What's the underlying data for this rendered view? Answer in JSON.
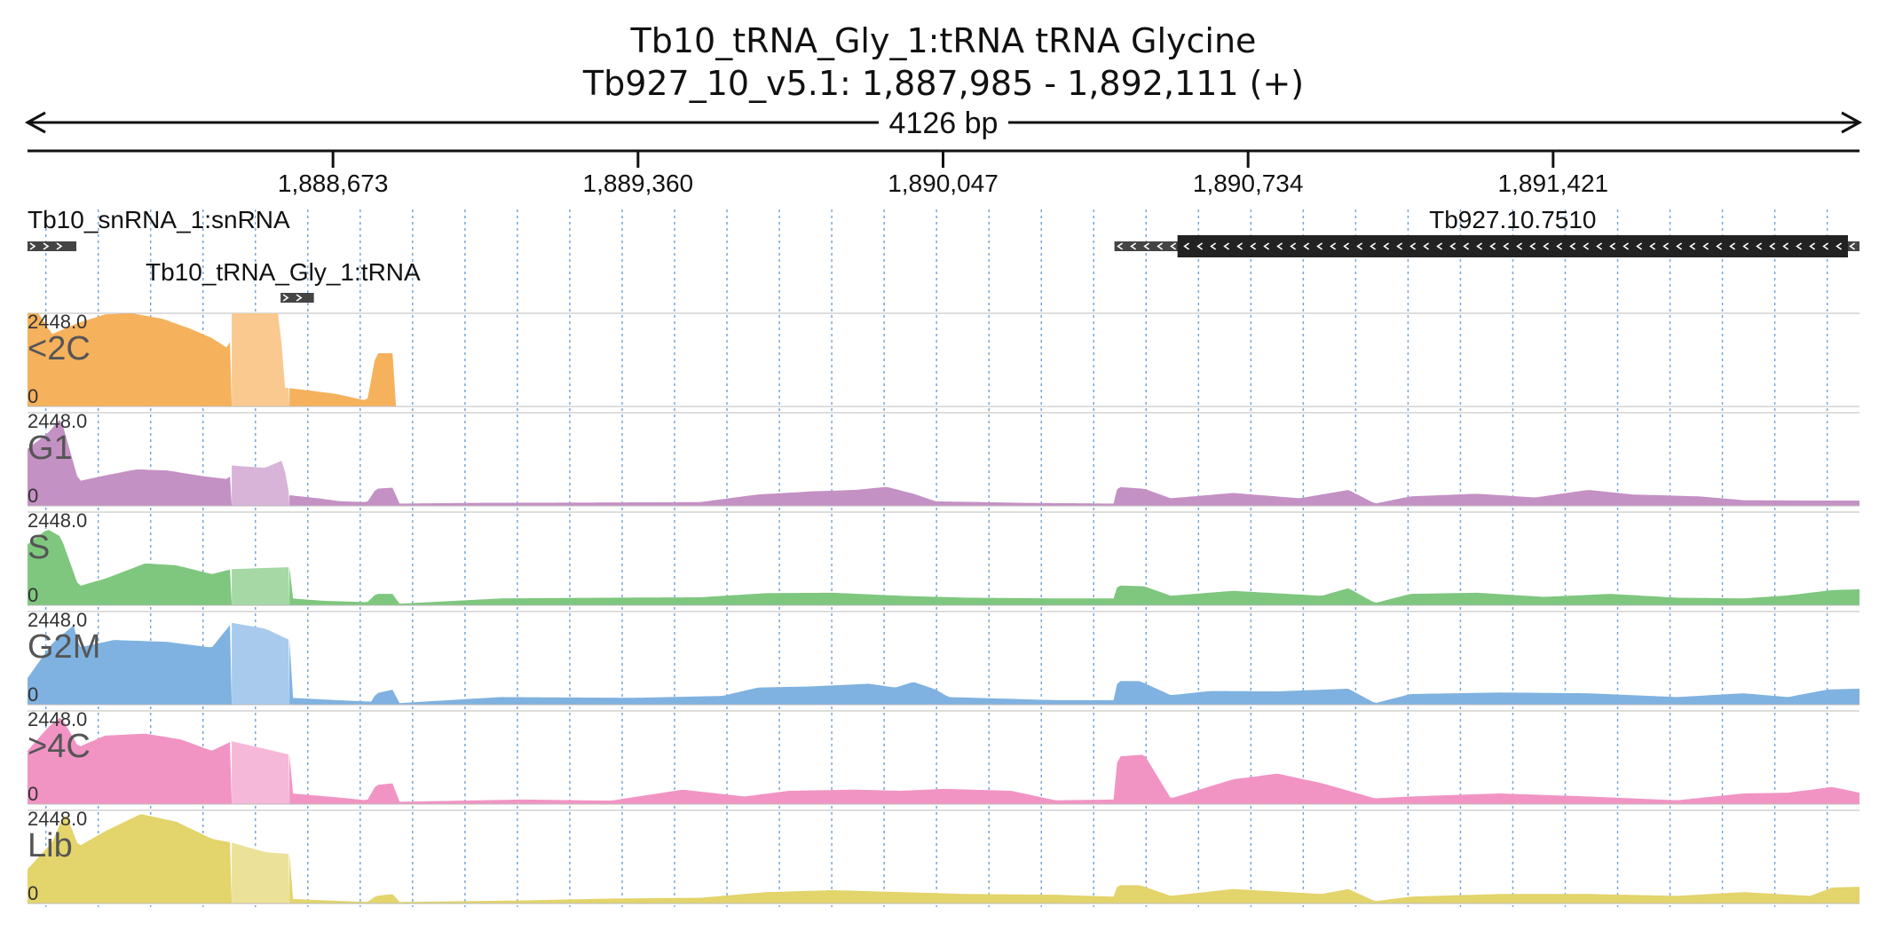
{
  "header": {
    "title": "Tb10_tRNA_Gly_1:tRNA  tRNA Glycine",
    "locus": "Tb927_10_v5.1: 1,887,985 - 1,892,111 (+)",
    "span_label": "4126 bp"
  },
  "colors": {
    "axis": "#111111",
    "grid_line": "#7aa6d8",
    "feature": "#222222",
    "arrow_glyph": "#ffffff",
    "label_text": "#333333",
    "track_label_text": "#555555",
    "track_separator": "#bbbbbb"
  },
  "ruler": {
    "ticks": [
      {
        "pos": 1888673,
        "label": "1,888,673"
      },
      {
        "pos": 1889360,
        "label": "1,889,360"
      },
      {
        "pos": 1890047,
        "label": "1,890,047"
      },
      {
        "pos": 1890734,
        "label": "1,890,734"
      },
      {
        "pos": 1891421,
        "label": "1,891,421"
      }
    ]
  },
  "annotations": [
    {
      "name": "Tb10_snRNA_1:snRNA",
      "start": 1887985,
      "end": 1888095,
      "strand": "+",
      "label_anchor": "start"
    },
    {
      "name": "Tb10_tRNA_Gly_1:tRNA",
      "start": 1888555,
      "end": 1888630,
      "strand": "+",
      "label_anchor": "below"
    },
    {
      "name": "Tb927.10.7510",
      "start": 1890433,
      "end": 1892111,
      "strand": "-",
      "thick_start": 1890575,
      "thick_end": 1892085,
      "label_anchor": "center"
    }
  ],
  "chart_data": {
    "type": "area",
    "xlim": [
      1887985,
      1892111
    ],
    "ylim": [
      0,
      2448
    ],
    "y_max_label": "2448.0",
    "y_min_label": "0",
    "guide_spacing_bp": 118,
    "tracks": [
      {
        "name": "<2C",
        "color": "#f5b15c",
        "light_color": "#fac98f",
        "light_region": [
          1888445,
          1888575
        ],
        "profile": [
          [
            1887985,
            2448
          ],
          [
            1888010,
            2448
          ],
          [
            1888040,
            1900
          ],
          [
            1888100,
            2200
          ],
          [
            1888160,
            2420
          ],
          [
            1888220,
            2448
          ],
          [
            1888290,
            2300
          ],
          [
            1888350,
            2050
          ],
          [
            1888400,
            1800
          ],
          [
            1888440,
            1500
          ],
          [
            1888445,
            2448
          ],
          [
            1888555,
            2448
          ],
          [
            1888560,
            500
          ],
          [
            1888620,
            420
          ],
          [
            1888680,
            330
          ],
          [
            1888750,
            150
          ],
          [
            1888770,
            1400
          ],
          [
            1888810,
            1400
          ],
          [
            1888812,
            0
          ],
          [
            1892111,
            0
          ]
        ]
      },
      {
        "name": "G1",
        "color": "#c491c4",
        "light_color": "#d8b4d8",
        "light_region": [
          1888445,
          1888575
        ],
        "profile": [
          [
            1887985,
            1500
          ],
          [
            1888030,
            1900
          ],
          [
            1888060,
            2300
          ],
          [
            1888100,
            650
          ],
          [
            1888160,
            800
          ],
          [
            1888230,
            960
          ],
          [
            1888300,
            930
          ],
          [
            1888380,
            780
          ],
          [
            1888440,
            700
          ],
          [
            1888445,
            1060
          ],
          [
            1888520,
            1000
          ],
          [
            1888560,
            1200
          ],
          [
            1888575,
            280
          ],
          [
            1888640,
            200
          ],
          [
            1888690,
            120
          ],
          [
            1888750,
            100
          ],
          [
            1888770,
            450
          ],
          [
            1888810,
            480
          ],
          [
            1888820,
            60
          ],
          [
            1889000,
            80
          ],
          [
            1889300,
            90
          ],
          [
            1889500,
            100
          ],
          [
            1889630,
            300
          ],
          [
            1889750,
            380
          ],
          [
            1889850,
            420
          ],
          [
            1889920,
            500
          ],
          [
            1889980,
            320
          ],
          [
            1890030,
            120
          ],
          [
            1890230,
            80
          ],
          [
            1890433,
            60
          ],
          [
            1890440,
            500
          ],
          [
            1890500,
            450
          ],
          [
            1890560,
            200
          ],
          [
            1890700,
            340
          ],
          [
            1890850,
            200
          ],
          [
            1890960,
            420
          ],
          [
            1891020,
            60
          ],
          [
            1891100,
            250
          ],
          [
            1891250,
            320
          ],
          [
            1891380,
            220
          ],
          [
            1891500,
            420
          ],
          [
            1891600,
            300
          ],
          [
            1891750,
            250
          ],
          [
            1891850,
            150
          ],
          [
            1892000,
            140
          ],
          [
            1892111,
            140
          ]
        ]
      },
      {
        "name": "S",
        "color": "#7fc77f",
        "light_color": "#a6d8a6",
        "light_region": [
          1888445,
          1888575
        ],
        "profile": [
          [
            1887985,
            1600
          ],
          [
            1888030,
            2000
          ],
          [
            1888060,
            1800
          ],
          [
            1888100,
            500
          ],
          [
            1888160,
            700
          ],
          [
            1888250,
            1100
          ],
          [
            1888320,
            1050
          ],
          [
            1888400,
            820
          ],
          [
            1888445,
            950
          ],
          [
            1888520,
            980
          ],
          [
            1888575,
            1000
          ],
          [
            1888580,
            180
          ],
          [
            1888650,
            120
          ],
          [
            1888750,
            80
          ],
          [
            1888770,
            300
          ],
          [
            1888810,
            300
          ],
          [
            1888820,
            40
          ],
          [
            1889050,
            180
          ],
          [
            1889300,
            200
          ],
          [
            1889500,
            210
          ],
          [
            1889650,
            320
          ],
          [
            1889800,
            330
          ],
          [
            1889950,
            250
          ],
          [
            1890100,
            200
          ],
          [
            1890300,
            180
          ],
          [
            1890433,
            180
          ],
          [
            1890440,
            520
          ],
          [
            1890500,
            500
          ],
          [
            1890560,
            250
          ],
          [
            1890700,
            380
          ],
          [
            1890900,
            250
          ],
          [
            1890960,
            450
          ],
          [
            1891020,
            60
          ],
          [
            1891100,
            300
          ],
          [
            1891250,
            330
          ],
          [
            1891400,
            220
          ],
          [
            1891550,
            300
          ],
          [
            1891700,
            200
          ],
          [
            1891850,
            180
          ],
          [
            1891950,
            260
          ],
          [
            1892050,
            400
          ],
          [
            1892111,
            420
          ]
        ]
      },
      {
        "name": "G2M",
        "color": "#7fb2e0",
        "light_color": "#a8cbed",
        "light_region": [
          1888445,
          1888575
        ],
        "profile": [
          [
            1887985,
            700
          ],
          [
            1888040,
            1600
          ],
          [
            1888090,
            2100
          ],
          [
            1888100,
            1500
          ],
          [
            1888180,
            1700
          ],
          [
            1888300,
            1650
          ],
          [
            1888400,
            1500
          ],
          [
            1888445,
            2150
          ],
          [
            1888520,
            2000
          ],
          [
            1888575,
            1700
          ],
          [
            1888580,
            180
          ],
          [
            1888680,
            120
          ],
          [
            1888760,
            80
          ],
          [
            1888770,
            300
          ],
          [
            1888810,
            400
          ],
          [
            1888820,
            40
          ],
          [
            1889050,
            200
          ],
          [
            1889350,
            180
          ],
          [
            1889550,
            230
          ],
          [
            1889630,
            450
          ],
          [
            1889750,
            480
          ],
          [
            1889880,
            550
          ],
          [
            1889940,
            450
          ],
          [
            1889980,
            600
          ],
          [
            1890030,
            400
          ],
          [
            1890060,
            200
          ],
          [
            1890300,
            120
          ],
          [
            1890433,
            120
          ],
          [
            1890440,
            620
          ],
          [
            1890490,
            620
          ],
          [
            1890560,
            250
          ],
          [
            1890650,
            360
          ],
          [
            1890800,
            350
          ],
          [
            1890960,
            420
          ],
          [
            1891020,
            40
          ],
          [
            1891100,
            280
          ],
          [
            1891300,
            320
          ],
          [
            1891500,
            300
          ],
          [
            1891700,
            200
          ],
          [
            1891850,
            300
          ],
          [
            1891950,
            200
          ],
          [
            1892040,
            400
          ],
          [
            1892111,
            420
          ]
        ]
      },
      {
        "name": ">4C",
        "color": "#f194c4",
        "light_color": "#f6b8d8",
        "light_region": [
          1888445,
          1888575
        ],
        "profile": [
          [
            1887985,
            1400
          ],
          [
            1888030,
            2000
          ],
          [
            1888060,
            2300
          ],
          [
            1888100,
            1500
          ],
          [
            1888160,
            1800
          ],
          [
            1888250,
            1850
          ],
          [
            1888330,
            1700
          ],
          [
            1888400,
            1400
          ],
          [
            1888445,
            1650
          ],
          [
            1888520,
            1450
          ],
          [
            1888575,
            1300
          ],
          [
            1888580,
            280
          ],
          [
            1888680,
            180
          ],
          [
            1888750,
            100
          ],
          [
            1888770,
            500
          ],
          [
            1888810,
            550
          ],
          [
            1888820,
            60
          ],
          [
            1889100,
            120
          ],
          [
            1889300,
            90
          ],
          [
            1889460,
            380
          ],
          [
            1889600,
            200
          ],
          [
            1889700,
            350
          ],
          [
            1889850,
            380
          ],
          [
            1889950,
            350
          ],
          [
            1890050,
            400
          ],
          [
            1890200,
            350
          ],
          [
            1890300,
            100
          ],
          [
            1890433,
            120
          ],
          [
            1890440,
            1250
          ],
          [
            1890500,
            1300
          ],
          [
            1890560,
            150
          ],
          [
            1890700,
            650
          ],
          [
            1890800,
            800
          ],
          [
            1890900,
            550
          ],
          [
            1891020,
            150
          ],
          [
            1891100,
            200
          ],
          [
            1891300,
            280
          ],
          [
            1891500,
            200
          ],
          [
            1891700,
            100
          ],
          [
            1891850,
            280
          ],
          [
            1891950,
            300
          ],
          [
            1892050,
            450
          ],
          [
            1892111,
            300
          ]
        ]
      },
      {
        "name": "Lib",
        "color": "#e3d46b",
        "light_color": "#ece198",
        "light_region": [
          1888445,
          1888575
        ],
        "profile": [
          [
            1887985,
            900
          ],
          [
            1888040,
            1600
          ],
          [
            1888070,
            2400
          ],
          [
            1888100,
            1500
          ],
          [
            1888160,
            1900
          ],
          [
            1888240,
            2350
          ],
          [
            1888320,
            2150
          ],
          [
            1888400,
            1700
          ],
          [
            1888445,
            1600
          ],
          [
            1888520,
            1350
          ],
          [
            1888575,
            1300
          ],
          [
            1888580,
            120
          ],
          [
            1888680,
            70
          ],
          [
            1888750,
            40
          ],
          [
            1888770,
            200
          ],
          [
            1888810,
            250
          ],
          [
            1888820,
            40
          ],
          [
            1889100,
            80
          ],
          [
            1889300,
            130
          ],
          [
            1889500,
            150
          ],
          [
            1889650,
            300
          ],
          [
            1889800,
            350
          ],
          [
            1889950,
            300
          ],
          [
            1890100,
            250
          ],
          [
            1890300,
            230
          ],
          [
            1890433,
            180
          ],
          [
            1890440,
            480
          ],
          [
            1890490,
            480
          ],
          [
            1890560,
            200
          ],
          [
            1890700,
            380
          ],
          [
            1890900,
            250
          ],
          [
            1890960,
            380
          ],
          [
            1891020,
            60
          ],
          [
            1891100,
            180
          ],
          [
            1891300,
            250
          ],
          [
            1891500,
            250
          ],
          [
            1891700,
            200
          ],
          [
            1891850,
            300
          ],
          [
            1892000,
            200
          ],
          [
            1892050,
            420
          ],
          [
            1892111,
            440
          ]
        ]
      }
    ]
  }
}
